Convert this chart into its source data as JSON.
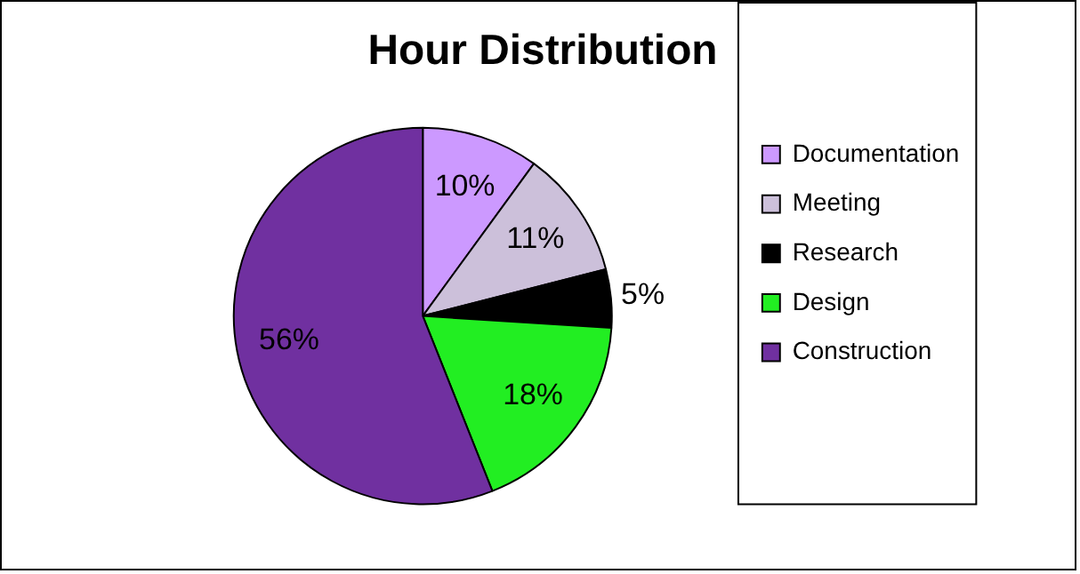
{
  "chart_data": {
    "type": "pie",
    "title": "Hour Distribution",
    "categories": [
      "Documentation",
      "Meeting",
      "Research",
      "Design",
      "Construction"
    ],
    "values": [
      10,
      11,
      5,
      18,
      56
    ],
    "colors": [
      "#cc99ff",
      "#ccc0da",
      "#000000",
      "#22ee22",
      "#7030a0"
    ],
    "value_labels": [
      "10%",
      "11%",
      "5%",
      "18%",
      "56%"
    ],
    "legend": "right"
  }
}
